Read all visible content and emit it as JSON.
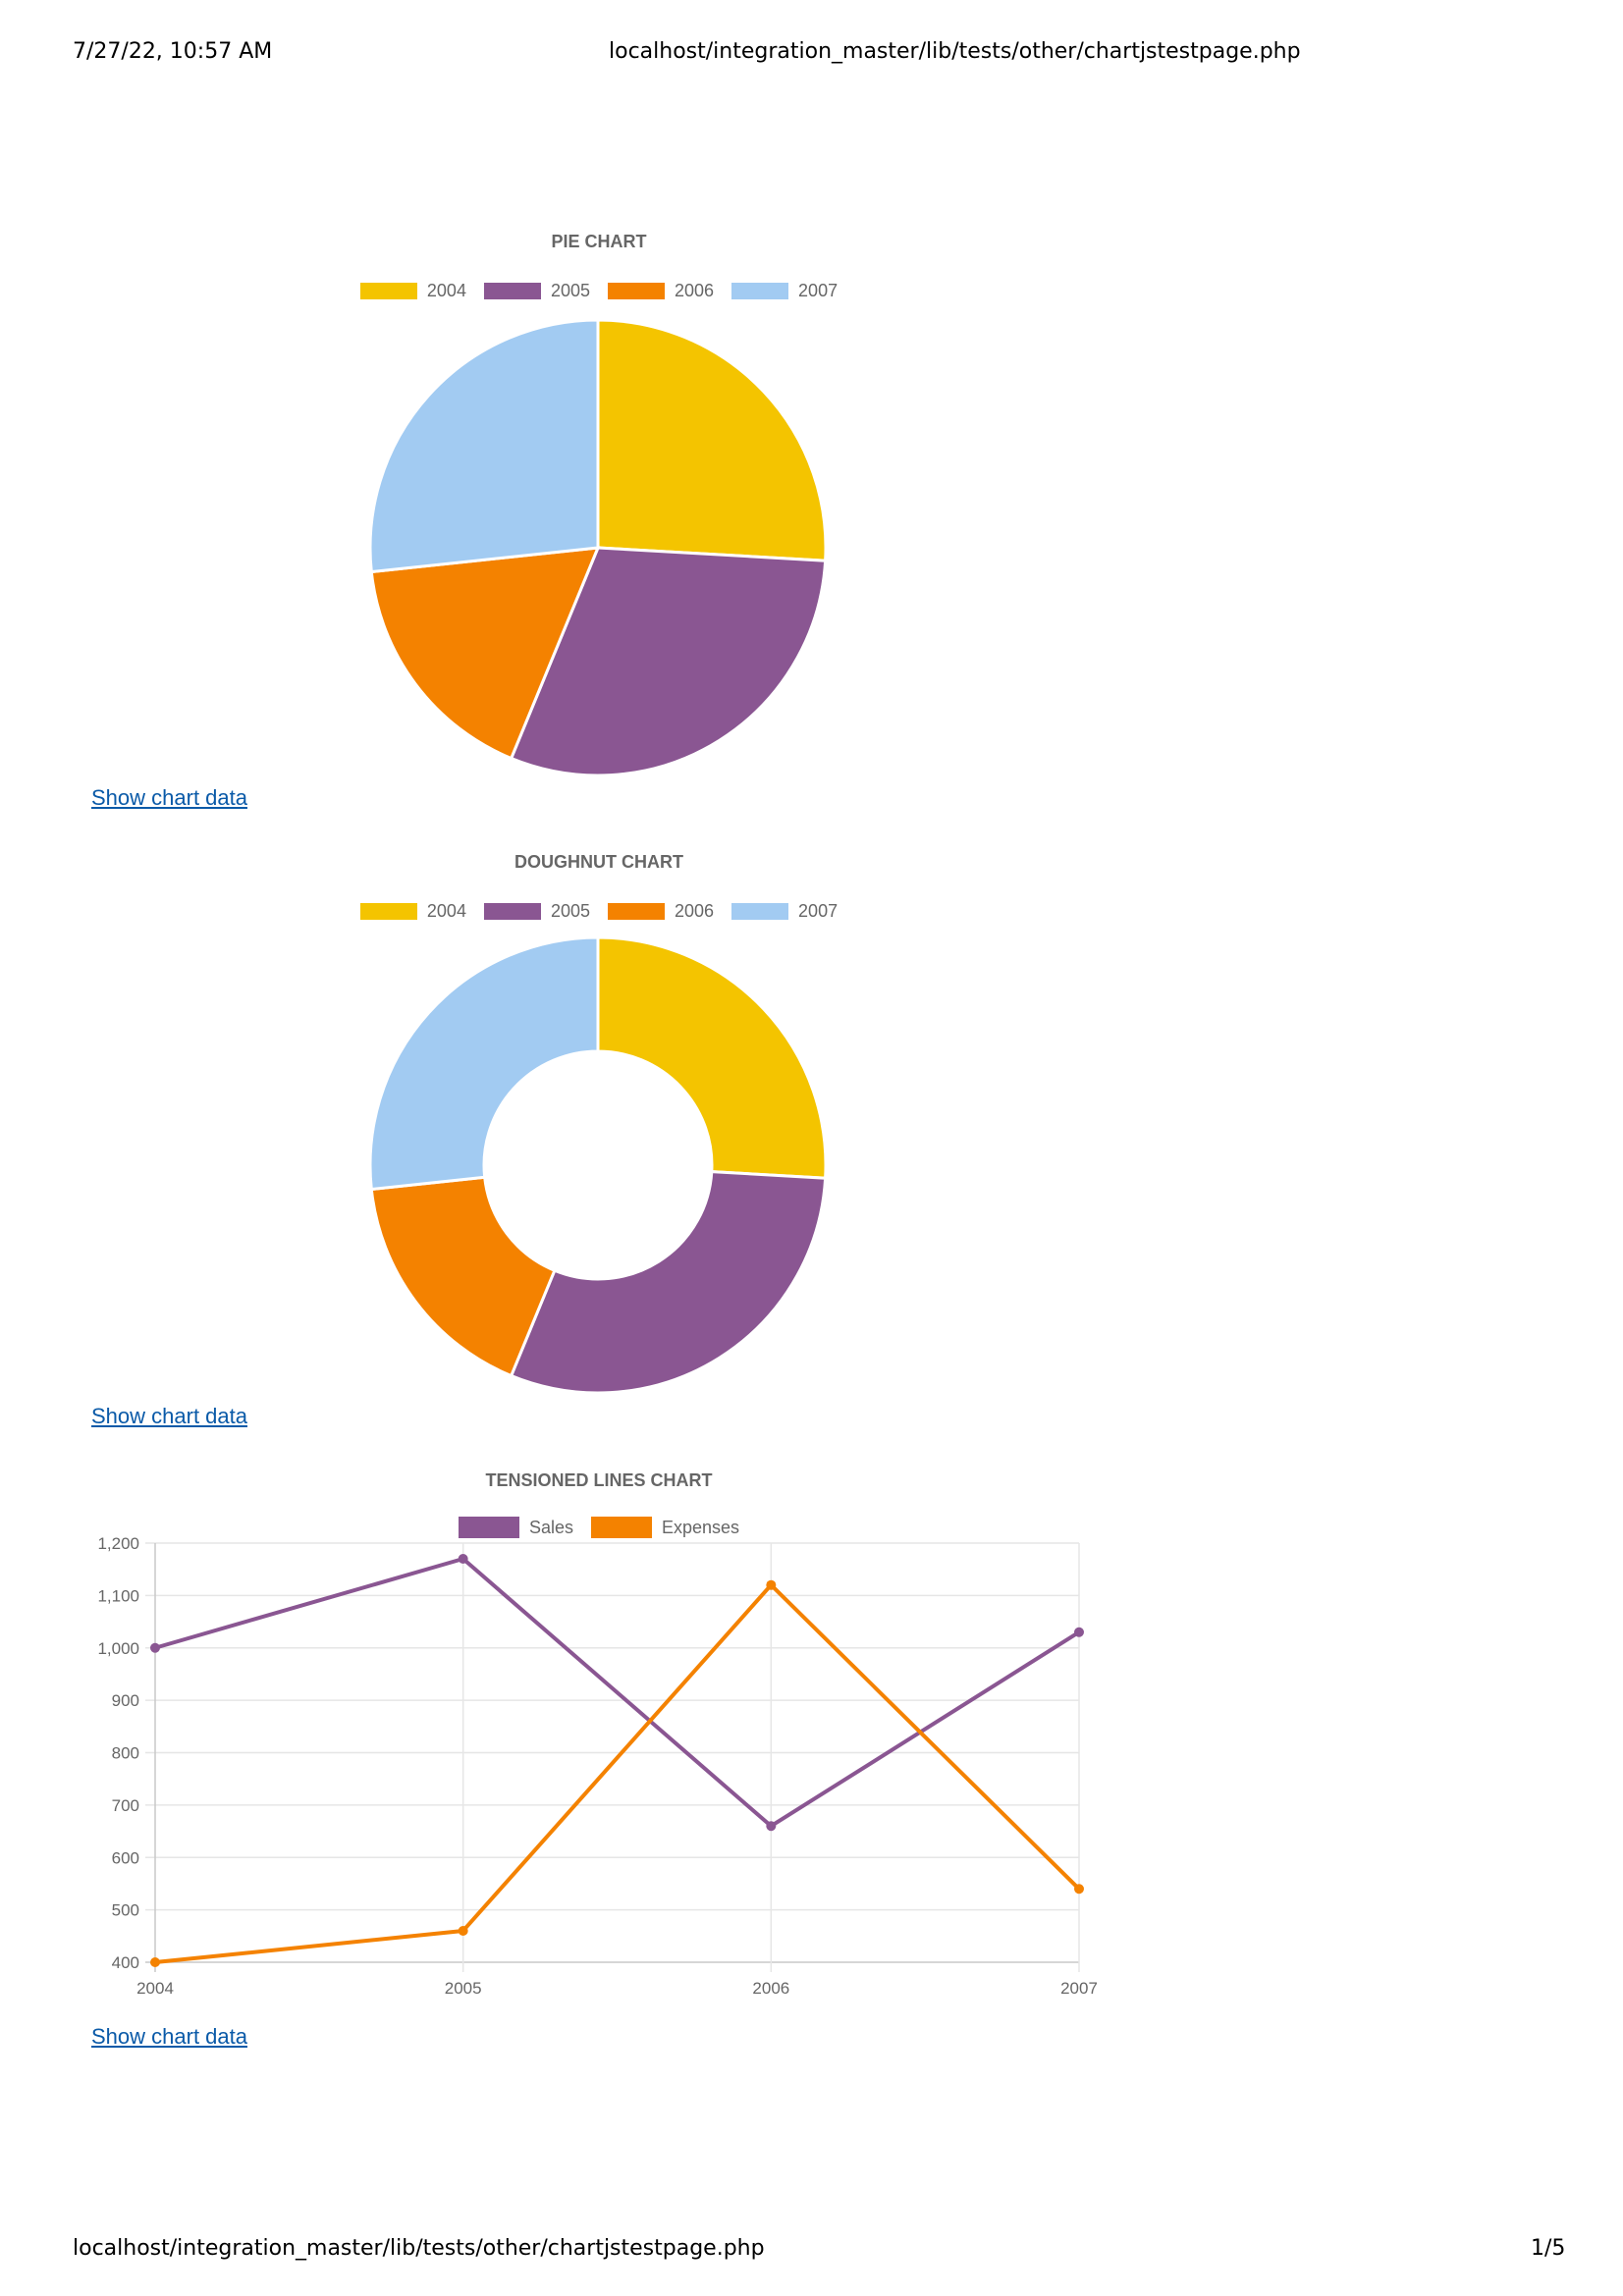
{
  "header": {
    "datetime": "7/27/22, 10:57 AM",
    "url": "localhost/integration_master/lib/tests/other/chartjstestpage.php"
  },
  "footer": {
    "url": "localhost/integration_master/lib/tests/other/chartjstestpage.php",
    "page": "1/5"
  },
  "show_data_label": "Show chart data",
  "colors": {
    "y2004": "#f4c400",
    "y2005": "#8a5692",
    "y2006": "#f48200",
    "y2007": "#a2cbf2"
  },
  "chart_data": [
    {
      "type": "pie",
      "title": "PIE CHART",
      "categories": [
        "2004",
        "2005",
        "2006",
        "2007"
      ],
      "values": [
        1000,
        1170,
        660,
        1030
      ],
      "colors": [
        "#f4c400",
        "#8a5692",
        "#f48200",
        "#a2cbf2"
      ],
      "legend": "top"
    },
    {
      "type": "pie",
      "subtype": "doughnut",
      "title": "DOUGHNUT CHART",
      "categories": [
        "2004",
        "2005",
        "2006",
        "2007"
      ],
      "values": [
        1000,
        1170,
        660,
        1030
      ],
      "colors": [
        "#f4c400",
        "#8a5692",
        "#f48200",
        "#a2cbf2"
      ],
      "legend": "top"
    },
    {
      "type": "line",
      "title": "TENSIONED LINES CHART",
      "x": [
        "2004",
        "2005",
        "2006",
        "2007"
      ],
      "series": [
        {
          "name": "Sales",
          "values": [
            1000,
            1170,
            660,
            1030
          ],
          "color": "#8a5692"
        },
        {
          "name": "Expenses",
          "values": [
            400,
            460,
            1120,
            540
          ],
          "color": "#f48200"
        }
      ],
      "ylim": [
        400,
        1200
      ],
      "yticks": [
        "400",
        "500",
        "600",
        "700",
        "800",
        "900",
        "1,000",
        "1,100",
        "1,200"
      ],
      "grid": true,
      "legend": "top"
    }
  ]
}
